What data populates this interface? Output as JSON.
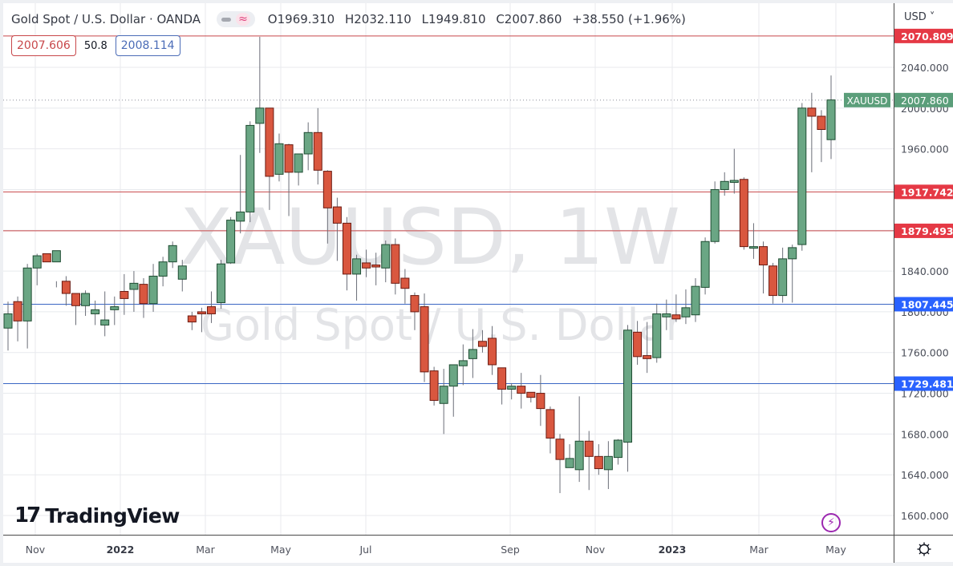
{
  "header": {
    "title": "Gold Spot / U.S. Dollar · OANDA",
    "ohlc": {
      "open": "O1969.310",
      "high": "H2032.110",
      "low": "L1949.810",
      "close": "C2007.860",
      "change": "+38.550 (+1.96%)"
    },
    "sell_price": "2007.606",
    "spread": "50.8",
    "buy_price": "2008.114"
  },
  "axis": {
    "currency": "USD ˅",
    "settings_icon": "gear-icon"
  },
  "watermark": {
    "line1": "XAUUSD, 1W",
    "line2": "Gold Spot / U.S. Dollar"
  },
  "branding": {
    "logo_mark": "17",
    "logo_text": "TradingView"
  },
  "last_price": {
    "symbol": "XAUUSD",
    "value": "2007.860",
    "color": "#5b9e7a"
  },
  "colors": {
    "up": "#6aa684",
    "down": "#d9573f",
    "up_border": "#1f4d33",
    "down_border": "#6b1b12",
    "resistance": "#c8474a",
    "support": "#3b67c4",
    "grid": "#e8eaee"
  },
  "chart_data": {
    "type": "candlestick",
    "title": "Gold Spot / U.S. Dollar · OANDA, 1W",
    "xlabel": "",
    "ylabel": "USD",
    "ylim": [
      1586,
      2088
    ],
    "yticks": [
      1600,
      1640,
      1680,
      1720,
      1760,
      1800,
      1840,
      1880,
      1920,
      1960,
      2000,
      2040
    ],
    "ytick_labels": [
      "1600.000",
      "1640.000",
      "1680.000",
      "1720.000",
      "1760.000",
      "1800.000",
      "1840.000",
      "1880.000",
      "1920.000",
      "1960.000",
      "2000.000",
      "2040.000"
    ],
    "xticks": [
      {
        "label": "Nov",
        "x": 36,
        "bold": false
      },
      {
        "label": "2022",
        "x": 142,
        "bold": true
      },
      {
        "label": "Mar",
        "x": 248,
        "bold": false
      },
      {
        "label": "May",
        "x": 342,
        "bold": false
      },
      {
        "label": "Jul",
        "x": 448,
        "bold": false
      },
      {
        "label": "Sep",
        "x": 628,
        "bold": false
      },
      {
        "label": "Nov",
        "x": 734,
        "bold": false
      },
      {
        "label": "2023",
        "x": 830,
        "bold": true
      },
      {
        "label": "Mar",
        "x": 938,
        "bold": false
      },
      {
        "label": "May",
        "x": 1034,
        "bold": false
      }
    ],
    "horizontal_levels": [
      {
        "value": 2070.809,
        "label": "2070.809",
        "color": "#c8474a"
      },
      {
        "value": 1917.742,
        "label": "1917.742",
        "color": "#c8474a"
      },
      {
        "value": 1879.493,
        "label": "1879.493",
        "color": "#c8474a"
      },
      {
        "value": 1807.445,
        "label": "1807.445",
        "color": "#3b67c4"
      },
      {
        "value": 1729.481,
        "label": "1729.481",
        "color": "#3b67c4"
      }
    ],
    "last_close": 2007.86,
    "candles": [
      [
        1784,
        1798,
        1762,
        1810
      ],
      [
        1810,
        1791,
        1771,
        1815
      ],
      [
        1791,
        1843,
        1764,
        1847
      ],
      [
        1843,
        1855,
        1826,
        1857
      ],
      [
        1857,
        1849,
        1853,
        1849
      ],
      [
        1849,
        1860,
        1824,
        1830
      ],
      [
        1830,
        1818,
        1806,
        1835
      ],
      [
        1818,
        1806,
        1787,
        1815
      ],
      [
        1806,
        1818,
        1796,
        1821
      ],
      [
        1798,
        1802,
        1787,
        1811
      ],
      [
        1787,
        1792,
        1776,
        1820
      ],
      [
        1802,
        1805,
        1787,
        1815
      ],
      [
        1820,
        1813,
        1797,
        1837
      ],
      [
        1822,
        1828,
        1800,
        1840
      ],
      [
        1827,
        1808,
        1794,
        1833
      ],
      [
        1808,
        1835,
        1800,
        1847
      ],
      [
        1835,
        1849,
        1825,
        1854
      ],
      [
        1849,
        1865,
        1843,
        1869
      ],
      [
        1832,
        1845,
        1820,
        1851
      ],
      [
        1796,
        1790,
        1782,
        1800
      ],
      [
        1800,
        1798,
        1780,
        1804
      ],
      [
        1805,
        1798,
        1789,
        1820
      ],
      [
        1809,
        1847,
        1803,
        1851
      ],
      [
        1848,
        1890,
        1847,
        1893
      ],
      [
        1889,
        1898,
        1877,
        1954
      ],
      [
        1898,
        1983,
        1888,
        1987
      ],
      [
        1985,
        2000,
        1956,
        2070
      ],
      [
        2000,
        1933,
        1900,
        1986
      ],
      [
        1935,
        1965,
        1928,
        1975
      ],
      [
        1964,
        1937,
        1894,
        1965
      ],
      [
        1937,
        1955,
        1924,
        1954
      ],
      [
        1955,
        1976,
        1939,
        1986
      ],
      [
        1976,
        1939,
        1925,
        2000
      ],
      [
        1938,
        1902,
        1867,
        1939
      ],
      [
        1903,
        1887,
        1850,
        1912
      ],
      [
        1887,
        1837,
        1821,
        1893
      ],
      [
        1837,
        1852,
        1811,
        1856
      ],
      [
        1848,
        1843,
        1834,
        1861
      ],
      [
        1846,
        1844,
        1826,
        1858
      ],
      [
        1843,
        1866,
        1829,
        1870
      ],
      [
        1866,
        1828,
        1817,
        1872
      ],
      [
        1833,
        1823,
        1808,
        1842
      ],
      [
        1816,
        1800,
        1782,
        1819
      ],
      [
        1805,
        1741,
        1731,
        1818
      ],
      [
        1742,
        1713,
        1708,
        1746
      ],
      [
        1710,
        1727,
        1680,
        1744
      ],
      [
        1727,
        1748,
        1697,
        1748
      ],
      [
        1747,
        1752,
        1728,
        1768
      ],
      [
        1754,
        1763,
        1735,
        1783
      ],
      [
        1771,
        1766,
        1760,
        1782
      ],
      [
        1774,
        1748,
        1738,
        1786
      ],
      [
        1745,
        1724,
        1709,
        1745
      ],
      [
        1724,
        1727,
        1714,
        1730
      ],
      [
        1727,
        1720,
        1705,
        1740
      ],
      [
        1721,
        1716,
        1711,
        1716
      ],
      [
        1720,
        1705,
        1688,
        1738
      ],
      [
        1704,
        1676,
        1661,
        1707
      ],
      [
        1675,
        1655,
        1622,
        1680
      ],
      [
        1647,
        1656,
        1648,
        1670
      ],
      [
        1645,
        1673,
        1633,
        1717
      ],
      [
        1673,
        1658,
        1625,
        1683
      ],
      [
        1658,
        1646,
        1640,
        1670
      ],
      [
        1645,
        1658,
        1626,
        1673
      ],
      [
        1657,
        1674,
        1650,
        1675
      ],
      [
        1672,
        1782,
        1643,
        1787
      ],
      [
        1780,
        1756,
        1748,
        1791
      ],
      [
        1757,
        1754,
        1740,
        1790
      ],
      [
        1755,
        1798,
        1750,
        1808
      ],
      [
        1795,
        1798,
        1782,
        1812
      ],
      [
        1797,
        1793,
        1790,
        1817
      ],
      [
        1795,
        1804,
        1788,
        1822
      ],
      [
        1797,
        1825,
        1790,
        1833
      ],
      [
        1824,
        1869,
        1817,
        1873
      ],
      [
        1869,
        1920,
        1867,
        1928
      ],
      [
        1920,
        1928,
        1914,
        1937
      ],
      [
        1927,
        1929,
        1916,
        1960
      ],
      [
        1930,
        1864,
        1861,
        1932
      ],
      [
        1864,
        1864,
        1852,
        1887
      ],
      [
        1864,
        1846,
        1818,
        1869
      ],
      [
        1845,
        1816,
        1808,
        1848
      ],
      [
        1816,
        1852,
        1809,
        1863
      ],
      [
        1852,
        1863,
        1809,
        1866
      ],
      [
        1866,
        2000,
        1860,
        2005
      ],
      [
        2000,
        1992,
        1937,
        2015
      ],
      [
        1992,
        1979,
        1947,
        1998
      ],
      [
        1969,
        2008,
        1950,
        2032
      ]
    ]
  }
}
